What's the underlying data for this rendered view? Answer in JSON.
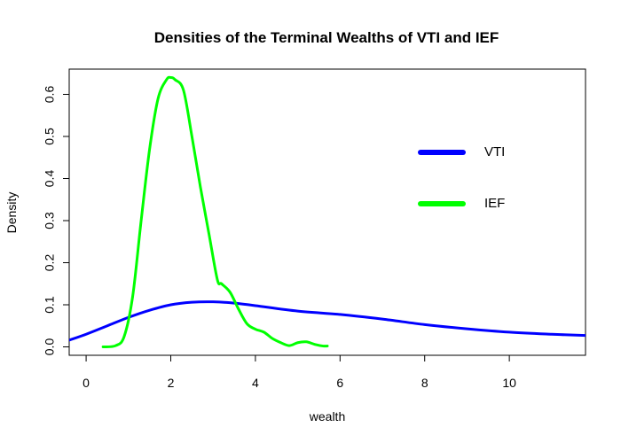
{
  "chart_data": {
    "type": "line",
    "title": "Densities of the Terminal Wealths of VTI and IEF",
    "xlabel": "wealth",
    "ylabel": "Density",
    "xlim": [
      -0.4,
      11.8
    ],
    "ylim": [
      -0.02,
      0.66
    ],
    "x_ticks": [
      0,
      2,
      4,
      6,
      8,
      10
    ],
    "x_tick_labels": [
      "0",
      "2",
      "4",
      "6",
      "8",
      "10"
    ],
    "y_ticks": [
      0.0,
      0.1,
      0.2,
      0.3,
      0.4,
      0.5,
      0.6
    ],
    "y_tick_labels": [
      "0.0",
      "0.1",
      "0.2",
      "0.3",
      "0.4",
      "0.5",
      "0.6"
    ],
    "legend": {
      "placement": "top-right",
      "entries": [
        "VTI",
        "IEF"
      ]
    },
    "series": [
      {
        "name": "VTI",
        "color": "#0000ff",
        "x": [
          -0.4,
          0.0,
          0.5,
          1.0,
          1.5,
          2.0,
          2.5,
          3.0,
          3.5,
          4.0,
          5.0,
          6.0,
          7.0,
          8.0,
          9.0,
          10.0,
          11.0,
          11.8
        ],
        "y": [
          0.016,
          0.03,
          0.05,
          0.07,
          0.087,
          0.1,
          0.106,
          0.107,
          0.104,
          0.098,
          0.085,
          0.077,
          0.066,
          0.053,
          0.043,
          0.035,
          0.03,
          0.027
        ]
      },
      {
        "name": "IEF",
        "color": "#00ff00",
        "x": [
          0.4,
          0.7,
          0.9,
          1.1,
          1.3,
          1.5,
          1.7,
          1.9,
          2.0,
          2.1,
          2.3,
          2.5,
          2.7,
          2.9,
          3.1,
          3.2,
          3.4,
          3.6,
          3.8,
          4.0,
          4.2,
          4.4,
          4.6,
          4.8,
          5.0,
          5.2,
          5.4,
          5.6,
          5.7
        ],
        "y": [
          0.0,
          0.003,
          0.025,
          0.12,
          0.3,
          0.47,
          0.59,
          0.635,
          0.64,
          0.635,
          0.61,
          0.5,
          0.38,
          0.27,
          0.16,
          0.15,
          0.13,
          0.09,
          0.055,
          0.042,
          0.035,
          0.02,
          0.01,
          0.003,
          0.01,
          0.012,
          0.006,
          0.002,
          0.002
        ]
      }
    ],
    "grid": false
  }
}
